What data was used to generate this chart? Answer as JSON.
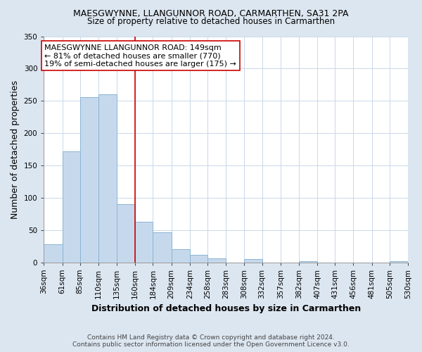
{
  "title": "MAESGWYNNE, LLANGUNNOR ROAD, CARMARTHEN, SA31 2PA",
  "subtitle": "Size of property relative to detached houses in Carmarthen",
  "xlabel": "Distribution of detached houses by size in Carmarthen",
  "ylabel": "Number of detached properties",
  "bar_color": "#c6d9ec",
  "bar_edge_color": "#8ab4d4",
  "bins": [
    36,
    61,
    85,
    110,
    135,
    160,
    184,
    209,
    234,
    258,
    283,
    308,
    332,
    357,
    382,
    407,
    431,
    456,
    481,
    505,
    530
  ],
  "bin_labels": [
    "36sqm",
    "61sqm",
    "85sqm",
    "110sqm",
    "135sqm",
    "160sqm",
    "184sqm",
    "209sqm",
    "234sqm",
    "258sqm",
    "283sqm",
    "308sqm",
    "332sqm",
    "357sqm",
    "382sqm",
    "407sqm",
    "431sqm",
    "456sqm",
    "481sqm",
    "505sqm",
    "530sqm"
  ],
  "counts": [
    28,
    172,
    256,
    260,
    90,
    63,
    46,
    20,
    11,
    6,
    0,
    5,
    0,
    0,
    2,
    0,
    0,
    0,
    0,
    2
  ],
  "ylim": [
    0,
    350
  ],
  "yticks": [
    0,
    50,
    100,
    150,
    200,
    250,
    300,
    350
  ],
  "vline_x": 160,
  "vline_color": "#cc0000",
  "annotation_title": "MAESGWYNNE LLANGUNNOR ROAD: 149sqm",
  "annotation_line1": "← 81% of detached houses are smaller (770)",
  "annotation_line2": "19% of semi-detached houses are larger (175) →",
  "annotation_box_color": "#ffffff",
  "annotation_box_edge": "#cc0000",
  "footer1": "Contains HM Land Registry data © Crown copyright and database right 2024.",
  "footer2": "Contains public sector information licensed under the Open Government Licence v3.0.",
  "bg_color": "#dce6f0",
  "plot_bg_color": "#ffffff",
  "title_fontsize": 9,
  "subtitle_fontsize": 8.5,
  "axis_label_fontsize": 9,
  "tick_fontsize": 7.5,
  "annotation_fontsize": 8,
  "footer_fontsize": 6.5
}
